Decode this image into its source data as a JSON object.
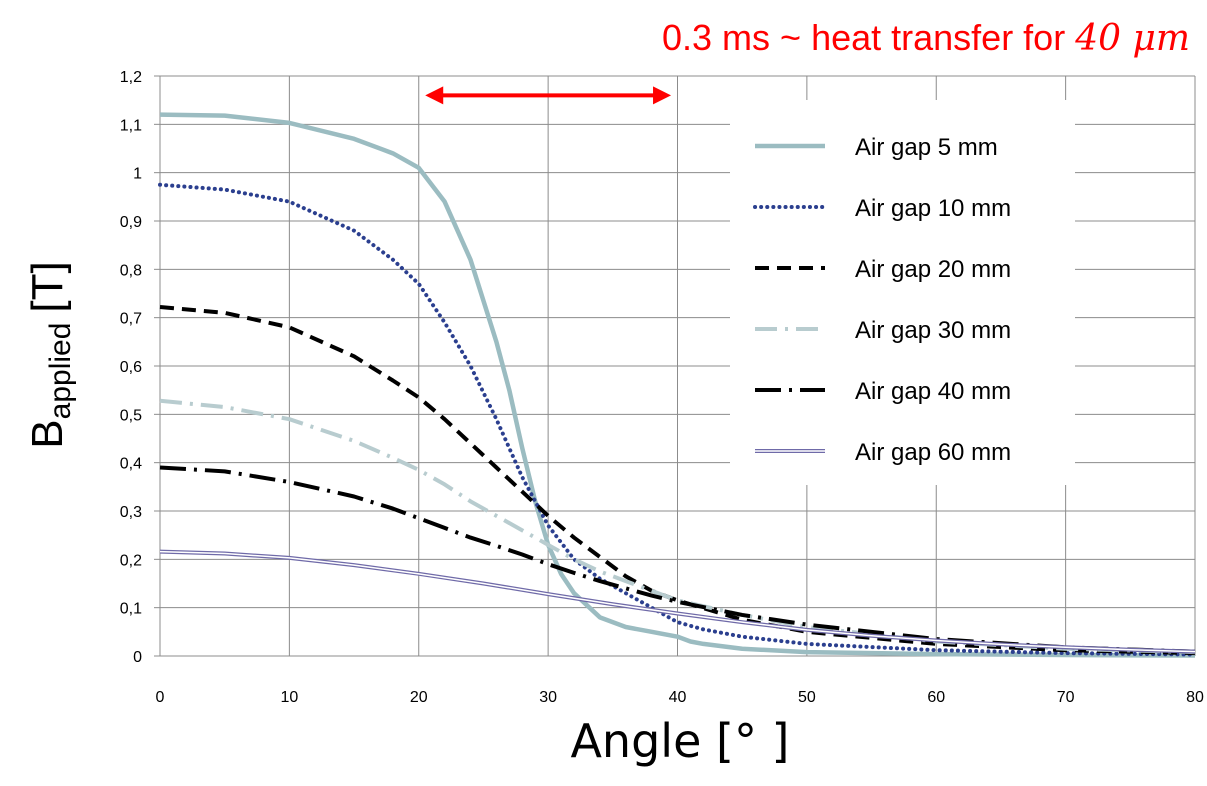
{
  "chart_data": {
    "type": "line",
    "title": "",
    "xlabel": "Angle [° ]",
    "ylabel": {
      "main": "B",
      "sub": "applied",
      "unit": "[T]"
    },
    "xlim": [
      0,
      80
    ],
    "ylim": [
      0,
      1.2
    ],
    "x_ticks": [
      0,
      10,
      20,
      30,
      40,
      50,
      60,
      70,
      80
    ],
    "x_tick_labels": [
      "0",
      "10",
      "20",
      "30",
      "40",
      "50",
      "60",
      "70",
      "80"
    ],
    "y_ticks": [
      0,
      0.1,
      0.2,
      0.3,
      0.4,
      0.5,
      0.6,
      0.7,
      0.8,
      0.9,
      1.0,
      1.1,
      1.2
    ],
    "y_tick_labels": [
      "0",
      "0,1",
      "0,2",
      "0,3",
      "0,4",
      "0,5",
      "0,6",
      "0,7",
      "0,8",
      "0,9",
      "1",
      "1,1",
      "1,2"
    ],
    "grid": true,
    "legend_position": "top-right",
    "annotation": {
      "text": "0.3 ms ~ heat transfer for ",
      "math": "40 μm",
      "color": "#ff0000",
      "arrow_x": [
        20.5,
        39.5
      ],
      "arrow_y": 1.16
    },
    "series": [
      {
        "name": "Air gap 5 mm",
        "color": "#9bbcc1",
        "style": "solid",
        "x": [
          0,
          5,
          10,
          15,
          18,
          20,
          22,
          24,
          26,
          27,
          28,
          29,
          30,
          31,
          32,
          34,
          36,
          38,
          40,
          41,
          42,
          45,
          50,
          60,
          70,
          80
        ],
        "y": [
          1.12,
          1.118,
          1.103,
          1.07,
          1.04,
          1.01,
          0.94,
          0.82,
          0.65,
          0.55,
          0.43,
          0.32,
          0.23,
          0.17,
          0.13,
          0.08,
          0.06,
          0.05,
          0.04,
          0.03,
          0.025,
          0.015,
          0.008,
          0.004,
          0.002,
          0.001
        ]
      },
      {
        "name": "Air gap 10 mm",
        "color": "#2b3f8f",
        "style": "dotted",
        "x": [
          0,
          5,
          10,
          15,
          18,
          20,
          22,
          24,
          26,
          28,
          30,
          32,
          34,
          36,
          38,
          40,
          42,
          45,
          50,
          60,
          70,
          80
        ],
        "y": [
          0.975,
          0.965,
          0.94,
          0.88,
          0.82,
          0.77,
          0.69,
          0.6,
          0.49,
          0.37,
          0.27,
          0.2,
          0.16,
          0.13,
          0.1,
          0.07,
          0.055,
          0.04,
          0.025,
          0.012,
          0.006,
          0.003
        ]
      },
      {
        "name": "Air gap 20 mm",
        "color": "#000000",
        "style": "dashed",
        "x": [
          0,
          5,
          10,
          15,
          18,
          20,
          22,
          24,
          26,
          28,
          30,
          32,
          34,
          36,
          38,
          40,
          45,
          50,
          60,
          70,
          80
        ],
        "y": [
          0.722,
          0.71,
          0.68,
          0.62,
          0.57,
          0.535,
          0.49,
          0.44,
          0.39,
          0.34,
          0.29,
          0.245,
          0.205,
          0.165,
          0.135,
          0.115,
          0.075,
          0.05,
          0.025,
          0.012,
          0.006
        ]
      },
      {
        "name": "Air gap 30 mm",
        "color": "#b8cccf",
        "style": "dashdot",
        "x": [
          0,
          5,
          10,
          15,
          18,
          20,
          22,
          24,
          26,
          28,
          30,
          32,
          34,
          36,
          38,
          40,
          45,
          50,
          60,
          70,
          80
        ],
        "y": [
          0.528,
          0.515,
          0.49,
          0.445,
          0.41,
          0.385,
          0.355,
          0.32,
          0.29,
          0.26,
          0.23,
          0.2,
          0.175,
          0.155,
          0.135,
          0.115,
          0.085,
          0.06,
          0.03,
          0.015,
          0.008
        ]
      },
      {
        "name": "Air gap 40 mm",
        "color": "#000000",
        "style": "longdashdot",
        "x": [
          0,
          5,
          10,
          15,
          18,
          20,
          22,
          24,
          26,
          28,
          30,
          32,
          34,
          36,
          38,
          40,
          45,
          50,
          60,
          70,
          80
        ],
        "y": [
          0.39,
          0.382,
          0.36,
          0.33,
          0.305,
          0.285,
          0.265,
          0.245,
          0.228,
          0.21,
          0.19,
          0.172,
          0.155,
          0.14,
          0.125,
          0.112,
          0.085,
          0.065,
          0.035,
          0.018,
          0.009
        ]
      },
      {
        "name": "Air gap 60 mm",
        "color": "#6f6aa8",
        "style": "double",
        "x": [
          0,
          5,
          10,
          15,
          20,
          25,
          30,
          35,
          40,
          45,
          50,
          55,
          60,
          65,
          70,
          75,
          80
        ],
        "y": [
          0.216,
          0.212,
          0.203,
          0.188,
          0.17,
          0.15,
          0.128,
          0.107,
          0.088,
          0.07,
          0.054,
          0.042,
          0.032,
          0.024,
          0.018,
          0.013,
          0.009
        ]
      }
    ]
  }
}
